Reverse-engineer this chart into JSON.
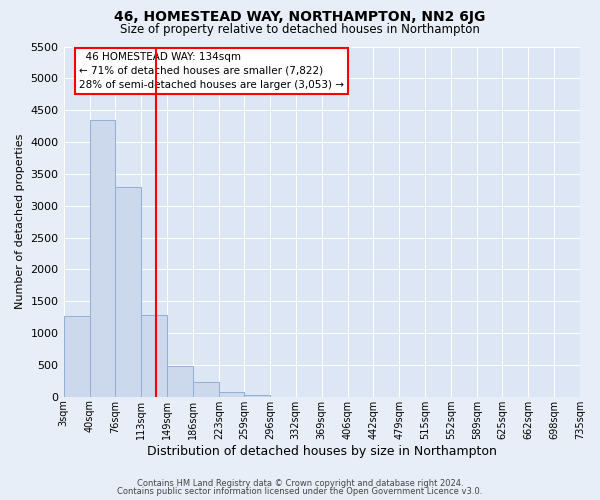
{
  "title": "46, HOMESTEAD WAY, NORTHAMPTON, NN2 6JG",
  "subtitle": "Size of property relative to detached houses in Northampton",
  "xlabel": "Distribution of detached houses by size in Northampton",
  "ylabel": "Number of detached properties",
  "bar_edges": [
    3,
    40,
    76,
    113,
    149,
    186,
    223,
    259,
    296,
    332,
    369,
    406,
    442,
    479,
    515,
    552,
    589,
    625,
    662,
    698,
    735
  ],
  "bar_heights": [
    1270,
    4350,
    3300,
    1280,
    480,
    230,
    80,
    30,
    0,
    0,
    0,
    0,
    0,
    0,
    0,
    0,
    0,
    0,
    0,
    0
  ],
  "bar_color": "#ccd9ed",
  "bar_edge_color": "#8fafd4",
  "vline_x": 134,
  "vline_color": "red",
  "ylim": [
    0,
    5500
  ],
  "yticks": [
    0,
    500,
    1000,
    1500,
    2000,
    2500,
    3000,
    3500,
    4000,
    4500,
    5000,
    5500
  ],
  "annotation_title": "46 HOMESTEAD WAY: 134sqm",
  "annotation_line1": "← 71% of detached houses are smaller (7,822)",
  "annotation_line2": "28% of semi-detached houses are larger (3,053) →",
  "annotation_box_color": "red",
  "footer1": "Contains HM Land Registry data © Crown copyright and database right 2024.",
  "footer2": "Contains public sector information licensed under the Open Government Licence v3.0.",
  "fig_bg_color": "#e8eef7",
  "plot_bg_color": "#dce6f4"
}
